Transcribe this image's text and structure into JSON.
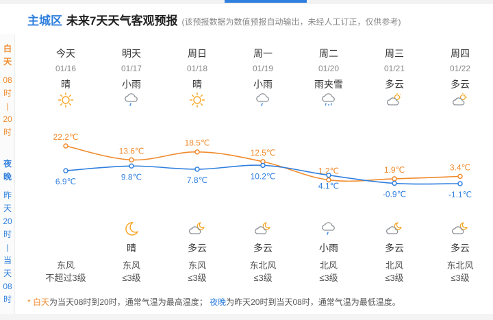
{
  "header": {
    "city": "主城区",
    "title": "未来7天天气客观预报",
    "note": "(该预报数据为数值预报自动输出，未经人工订正，仅供参考)"
  },
  "side": {
    "day": [
      "白",
      "天"
    ],
    "day_range": [
      "08",
      "时",
      "|",
      "20",
      "时"
    ],
    "night": [
      "夜",
      "晚"
    ],
    "night_range": [
      "昨",
      "天",
      "20",
      "时",
      "|",
      "当",
      "天",
      "08",
      "时"
    ]
  },
  "days": [
    {
      "weekday": "今天",
      "date": "01/16",
      "day_cond": "晴",
      "day_icon": "sun-icon",
      "high": "22.2℃",
      "low": "6.9℃",
      "night_cond": "",
      "night_icon": "",
      "wind_dir": "东风",
      "wind_level": "不超过3级"
    },
    {
      "weekday": "明天",
      "date": "01/17",
      "day_cond": "小雨",
      "day_icon": "rain-icon",
      "high": "13.6℃",
      "low": "9.8℃",
      "night_cond": "晴",
      "night_icon": "moon-icon",
      "wind_dir": "东风",
      "wind_level": "≤3级"
    },
    {
      "weekday": "周日",
      "date": "01/18",
      "day_cond": "晴",
      "day_icon": "sun-icon",
      "high": "18.5℃",
      "low": "7.8℃",
      "night_cond": "多云",
      "night_icon": "cloud-moon-icon",
      "wind_dir": "东风",
      "wind_level": "≤3级"
    },
    {
      "weekday": "周一",
      "date": "01/19",
      "day_cond": "小雨",
      "day_icon": "rain-icon",
      "high": "12.5℃",
      "low": "10.2℃",
      "night_cond": "多云",
      "night_icon": "cloud-moon-icon",
      "wind_dir": "东北风",
      "wind_level": "≤3级"
    },
    {
      "weekday": "周二",
      "date": "01/20",
      "day_cond": "雨夹雪",
      "day_icon": "sleet-icon",
      "high": "1.2℃",
      "low": "4.1℃",
      "night_cond": "小雨",
      "night_icon": "rain-icon",
      "wind_dir": "北风",
      "wind_level": "≤3级"
    },
    {
      "weekday": "周三",
      "date": "01/21",
      "day_cond": "多云",
      "day_icon": "cloud-sun-icon",
      "high": "1.9℃",
      "low": "-0.9℃",
      "night_cond": "多云",
      "night_icon": "cloud-moon-icon",
      "wind_dir": "北风",
      "wind_level": "≤3级"
    },
    {
      "weekday": "周四",
      "date": "01/22",
      "day_cond": "多云",
      "day_icon": "cloud-sun-icon",
      "high": "3.4℃",
      "low": "-1.1℃",
      "night_cond": "多云",
      "night_icon": "cloud-moon-icon",
      "wind_dir": "东北风",
      "wind_level": "≤3级"
    }
  ],
  "chart_data": {
    "type": "line",
    "categories": [
      "01/16",
      "01/17",
      "01/18",
      "01/19",
      "01/20",
      "01/21",
      "01/22"
    ],
    "series": [
      {
        "values": [
          22.2,
          13.6,
          18.5,
          12.5,
          1.2,
          1.9,
          3.4
        ],
        "color": "#f08a2c"
      },
      {
        "values": [
          6.9,
          9.8,
          7.8,
          10.2,
          4.1,
          -0.9,
          -1.1
        ],
        "color": "#2f7fde"
      }
    ]
  },
  "footer": {
    "star": "* ",
    "day_label": "白天",
    "day_text": "为当天08时到20时，通常气温为最高温度；",
    "night_label": "夜晚",
    "night_text": "为昨天20时到当天08时，通常气温为最低温度。"
  },
  "colors": {
    "high": "#f08a2c",
    "low": "#2f7fde",
    "accent": "#2f7fde"
  }
}
